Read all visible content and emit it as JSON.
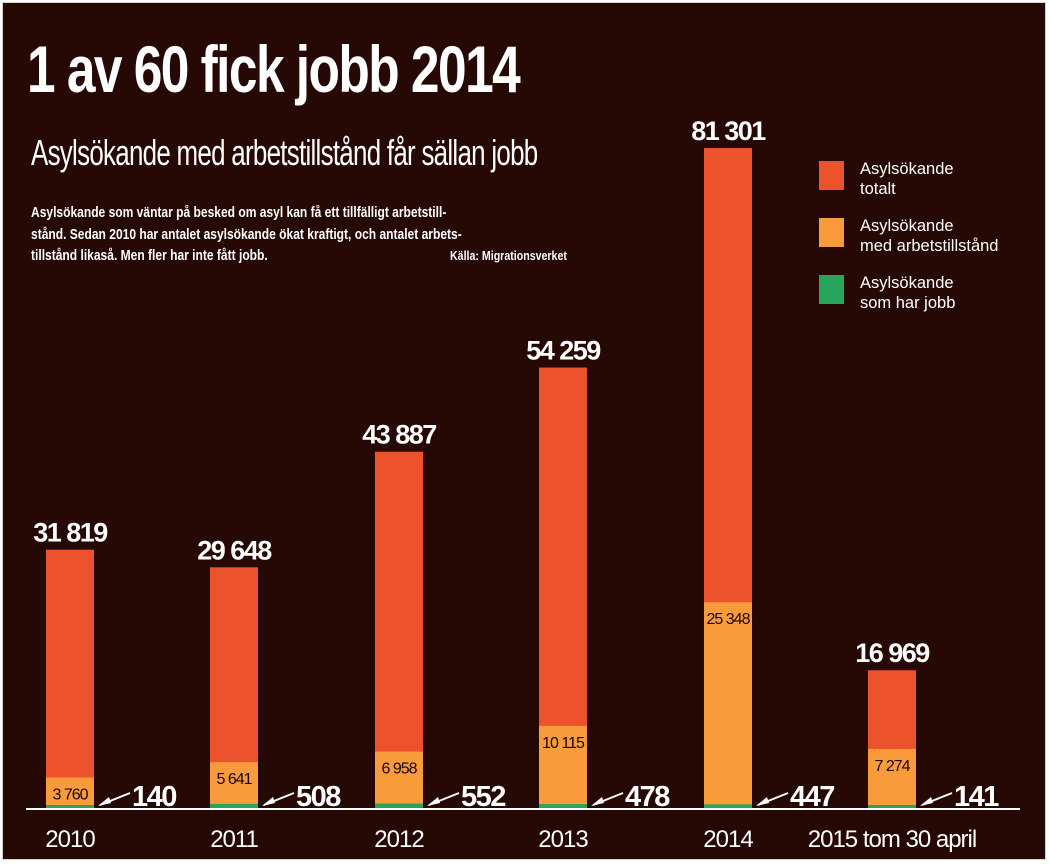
{
  "header": {
    "title": "1 av 60 fick jobb 2014",
    "subtitle": "Asylsökande med arbetstillstånd får sällan jobb",
    "description": [
      "Asylsökande som väntar på besked om asyl kan få ett tillfälligt arbetstill-",
      "stånd. Sedan 2010 har antalet asylsökande ökat kraftigt, och antalet arbets-",
      "tillstånd likaså. Men fler har inte fått jobb."
    ],
    "source": "Källa: Migrationsverket"
  },
  "colors": {
    "background": "#260805",
    "total": "#ec532d",
    "work_permit": "#f89c3b",
    "employed": "#27a55b",
    "text": "#ffffff"
  },
  "legend": [
    {
      "label": "Asylsökande\ntotalt",
      "color": "#ec532d"
    },
    {
      "label": "Asylsökande\nmed arbetstillstånd",
      "color": "#f89c3b"
    },
    {
      "label": "Asylsökande\nsom har jobb",
      "color": "#27a55b"
    }
  ],
  "chart_data": {
    "type": "bar",
    "stacking": "overlay",
    "title": "1 av 60 fick jobb 2014",
    "subtitle": "Asylsökande med arbetstillstånd får sällan jobb",
    "xlabel": "",
    "ylabel": "",
    "ylim": [
      0,
      81301
    ],
    "grid": false,
    "legend_position": "top-right",
    "categories": [
      "2010",
      "2011",
      "2012",
      "2013",
      "2014",
      "2015 tom 30 april"
    ],
    "series": [
      {
        "name": "Asylsökande totalt",
        "color": "#ec532d",
        "values": [
          31819,
          29648,
          43887,
          54259,
          81301,
          16969
        ],
        "labels": [
          "31 819",
          "29 648",
          "43 887",
          "54 259",
          "81 301",
          "16 969"
        ]
      },
      {
        "name": "Asylsökande med arbetstillstånd",
        "color": "#f89c3b",
        "values": [
          3760,
          5641,
          6958,
          10115,
          25348,
          7274
        ],
        "labels": [
          "3 760",
          "5 641",
          "6 958",
          "10 115",
          "25 348",
          "7 274"
        ]
      },
      {
        "name": "Asylsökande som har jobb",
        "color": "#27a55b",
        "values": [
          140,
          508,
          552,
          478,
          447,
          141
        ],
        "labels": [
          "140",
          "508",
          "552",
          "478",
          "447",
          "141"
        ]
      }
    ]
  }
}
